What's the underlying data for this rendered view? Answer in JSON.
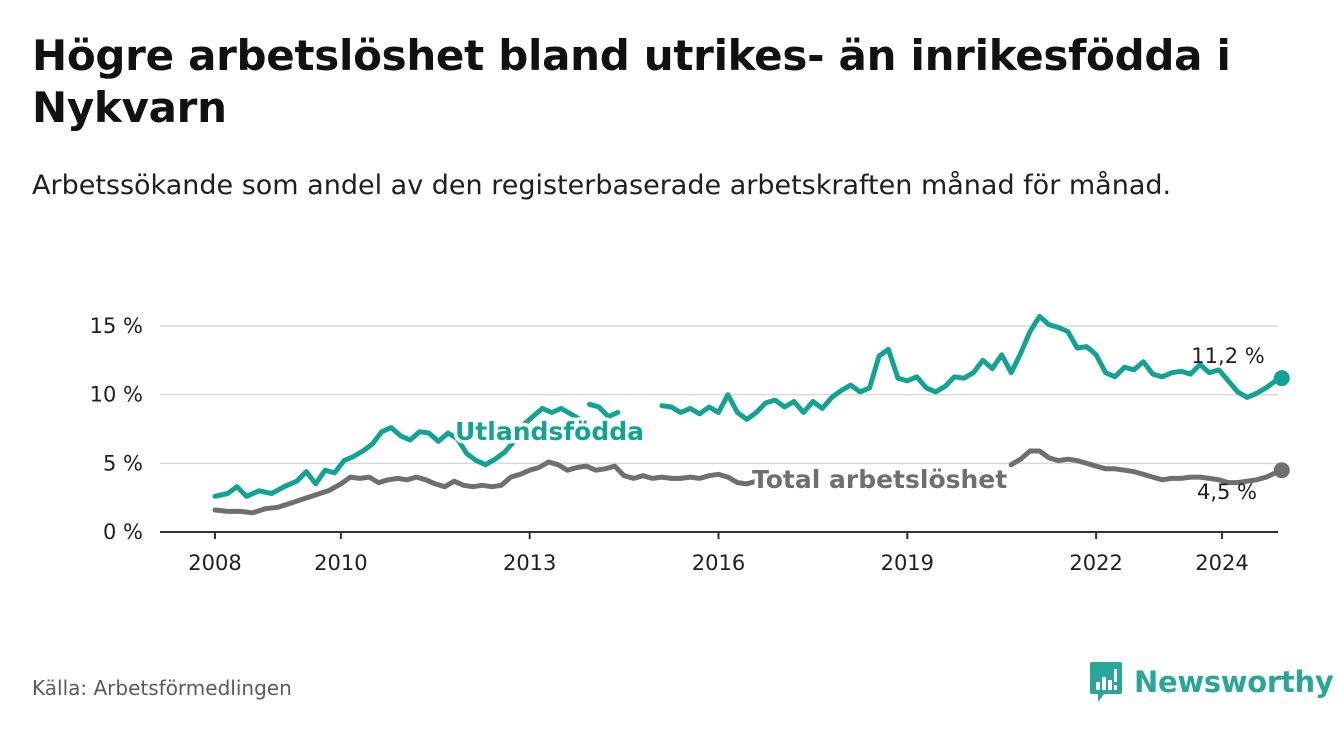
{
  "header": {
    "title": "Högre arbetslöshet bland utrikes- än inrikesfödda i Nykvarn",
    "subtitle": "Arbetssökande som andel av den registerbaserade arbetskraften månad för månad."
  },
  "footer": {
    "source": "Källa: Arbetsförmedlingen",
    "brand": "Newsworthy"
  },
  "colors": {
    "utlandsfodda": "#13a394",
    "total": "#6f6f6f",
    "grid": "#d9d9d9",
    "axis": "#333333",
    "brand": "#2aa59a"
  },
  "chart_data": {
    "type": "line",
    "title": "Högre arbetslöshet bland utrikes- än inrikesfödda i Nykvarn",
    "xlabel": "",
    "ylabel": "",
    "xlim": [
      2007.7,
      2025.0
    ],
    "ylim": [
      0,
      15
    ],
    "grid": true,
    "x_ticks": [
      2008,
      2010,
      2013,
      2016,
      2019,
      2022,
      2024
    ],
    "x_tick_labels": [
      "2008",
      "2010",
      "2013",
      "2016",
      "2019",
      "2022",
      "2024"
    ],
    "y_ticks": [
      0,
      5,
      10,
      15
    ],
    "y_tick_labels": [
      "0 %",
      "5 %",
      "10 %",
      "15 %"
    ],
    "series": [
      {
        "name": "Utlandsfödda",
        "label": "Utlandsfödda",
        "color": "#13a394",
        "end_label": "11,2 %",
        "end_value": 11.2,
        "segments": [
          [
            [
              2008.0,
              2.6
            ],
            [
              2008.2,
              2.8
            ],
            [
              2008.35,
              3.3
            ],
            [
              2008.5,
              2.6
            ],
            [
              2008.7,
              3.0
            ],
            [
              2008.9,
              2.8
            ],
            [
              2009.1,
              3.3
            ],
            [
              2009.3,
              3.7
            ],
            [
              2009.45,
              4.4
            ],
            [
              2009.6,
              3.5
            ],
            [
              2009.75,
              4.5
            ],
            [
              2009.9,
              4.3
            ],
            [
              2010.05,
              5.2
            ],
            [
              2010.2,
              5.5
            ],
            [
              2010.35,
              5.9
            ],
            [
              2010.5,
              6.4
            ],
            [
              2010.65,
              7.3
            ],
            [
              2010.8,
              7.6
            ],
            [
              2010.95,
              7.0
            ],
            [
              2011.1,
              6.7
            ],
            [
              2011.25,
              7.3
            ],
            [
              2011.4,
              7.2
            ],
            [
              2011.55,
              6.6
            ],
            [
              2011.7,
              7.2
            ],
            [
              2011.85,
              6.8
            ],
            [
              2012.0,
              5.7
            ],
            [
              2012.15,
              5.2
            ],
            [
              2012.3,
              4.9
            ],
            [
              2012.45,
              5.3
            ],
            [
              2012.6,
              5.8
            ],
            [
              2012.75,
              6.6
            ],
            [
              2012.9,
              7.8
            ],
            [
              2013.05,
              8.4
            ],
            [
              2013.2,
              9.0
            ],
            [
              2013.35,
              8.7
            ],
            [
              2013.5,
              9.0
            ],
            [
              2013.65,
              8.6
            ],
            [
              2013.8,
              8.2
            ]
          ],
          [
            [
              2013.95,
              9.3
            ],
            [
              2014.1,
              9.1
            ],
            [
              2014.25,
              8.4
            ],
            [
              2014.4,
              8.7
            ]
          ],
          [
            [
              2015.1,
              9.2
            ],
            [
              2015.25,
              9.1
            ],
            [
              2015.4,
              8.7
            ],
            [
              2015.55,
              9.0
            ],
            [
              2015.7,
              8.6
            ],
            [
              2015.85,
              9.1
            ],
            [
              2016.0,
              8.7
            ],
            [
              2016.15,
              10.0
            ],
            [
              2016.3,
              8.7
            ],
            [
              2016.45,
              8.2
            ],
            [
              2016.6,
              8.7
            ],
            [
              2016.75,
              9.4
            ],
            [
              2016.9,
              9.6
            ],
            [
              2017.05,
              9.1
            ],
            [
              2017.2,
              9.5
            ],
            [
              2017.35,
              8.7
            ],
            [
              2017.5,
              9.5
            ],
            [
              2017.65,
              9.0
            ],
            [
              2017.8,
              9.8
            ],
            [
              2017.95,
              10.3
            ],
            [
              2018.1,
              10.7
            ],
            [
              2018.25,
              10.2
            ],
            [
              2018.4,
              10.5
            ],
            [
              2018.55,
              12.8
            ],
            [
              2018.7,
              13.3
            ],
            [
              2018.85,
              11.2
            ],
            [
              2019.0,
              11.0
            ],
            [
              2019.15,
              11.3
            ],
            [
              2019.3,
              10.5
            ],
            [
              2019.45,
              10.2
            ],
            [
              2019.6,
              10.6
            ],
            [
              2019.75,
              11.3
            ],
            [
              2019.9,
              11.2
            ],
            [
              2020.05,
              11.6
            ],
            [
              2020.2,
              12.5
            ],
            [
              2020.35,
              11.9
            ],
            [
              2020.5,
              12.9
            ],
            [
              2020.65,
              11.6
            ],
            [
              2020.8,
              13.0
            ],
            [
              2020.95,
              14.6
            ],
            [
              2021.1,
              15.7
            ],
            [
              2021.25,
              15.1
            ],
            [
              2021.4,
              14.9
            ],
            [
              2021.55,
              14.6
            ],
            [
              2021.7,
              13.4
            ],
            [
              2021.85,
              13.5
            ],
            [
              2022.0,
              12.9
            ],
            [
              2022.15,
              11.6
            ],
            [
              2022.3,
              11.3
            ],
            [
              2022.45,
              12.0
            ],
            [
              2022.6,
              11.8
            ],
            [
              2022.75,
              12.4
            ],
            [
              2022.9,
              11.5
            ],
            [
              2023.05,
              11.3
            ],
            [
              2023.2,
              11.6
            ],
            [
              2023.35,
              11.7
            ],
            [
              2023.5,
              11.5
            ],
            [
              2023.65,
              12.2
            ],
            [
              2023.8,
              11.6
            ],
            [
              2023.95,
              11.8
            ],
            [
              2024.1,
              11.0
            ],
            [
              2024.25,
              10.2
            ],
            [
              2024.4,
              9.8
            ],
            [
              2024.55,
              10.1
            ],
            [
              2024.7,
              10.5
            ],
            [
              2024.85,
              11.0
            ],
            [
              2024.95,
              11.2
            ]
          ]
        ]
      },
      {
        "name": "Total arbetslöshet",
        "label": "Total arbetslöshet",
        "color": "#6f6f6f",
        "end_label": "4,5 %",
        "end_value": 4.5,
        "segments": [
          [
            [
              2008.0,
              1.6
            ],
            [
              2008.2,
              1.5
            ],
            [
              2008.4,
              1.5
            ],
            [
              2008.6,
              1.4
            ],
            [
              2008.8,
              1.7
            ],
            [
              2009.0,
              1.8
            ],
            [
              2009.2,
              2.1
            ],
            [
              2009.4,
              2.4
            ],
            [
              2009.6,
              2.7
            ],
            [
              2009.8,
              3.0
            ],
            [
              2010.0,
              3.5
            ],
            [
              2010.15,
              4.0
            ],
            [
              2010.3,
              3.9
            ],
            [
              2010.45,
              4.0
            ],
            [
              2010.6,
              3.6
            ],
            [
              2010.75,
              3.8
            ],
            [
              2010.9,
              3.9
            ],
            [
              2011.05,
              3.8
            ],
            [
              2011.2,
              4.0
            ],
            [
              2011.35,
              3.8
            ],
            [
              2011.5,
              3.5
            ],
            [
              2011.65,
              3.3
            ],
            [
              2011.8,
              3.7
            ],
            [
              2011.95,
              3.4
            ],
            [
              2012.1,
              3.3
            ],
            [
              2012.25,
              3.4
            ],
            [
              2012.4,
              3.3
            ],
            [
              2012.55,
              3.4
            ],
            [
              2012.7,
              4.0
            ],
            [
              2012.85,
              4.2
            ],
            [
              2013.0,
              4.5
            ],
            [
              2013.15,
              4.7
            ],
            [
              2013.3,
              5.1
            ],
            [
              2013.45,
              4.9
            ],
            [
              2013.6,
              4.5
            ],
            [
              2013.75,
              4.7
            ],
            [
              2013.9,
              4.8
            ],
            [
              2014.05,
              4.5
            ],
            [
              2014.2,
              4.6
            ],
            [
              2014.35,
              4.8
            ],
            [
              2014.5,
              4.1
            ],
            [
              2014.65,
              3.9
            ],
            [
              2014.8,
              4.1
            ],
            [
              2014.95,
              3.9
            ],
            [
              2015.1,
              4.0
            ],
            [
              2015.25,
              3.9
            ],
            [
              2015.4,
              3.9
            ],
            [
              2015.55,
              4.0
            ],
            [
              2015.7,
              3.9
            ],
            [
              2015.85,
              4.1
            ],
            [
              2016.0,
              4.2
            ],
            [
              2016.15,
              4.0
            ],
            [
              2016.3,
              3.6
            ],
            [
              2016.45,
              3.5
            ],
            [
              2016.6,
              3.7
            ],
            [
              2016.75,
              3.8
            ]
          ],
          [
            [
              2020.65,
              4.9
            ],
            [
              2020.8,
              5.3
            ],
            [
              2020.95,
              5.9
            ],
            [
              2021.1,
              5.9
            ],
            [
              2021.25,
              5.4
            ],
            [
              2021.4,
              5.2
            ],
            [
              2021.55,
              5.3
            ],
            [
              2021.7,
              5.2
            ],
            [
              2021.85,
              5.0
            ],
            [
              2022.0,
              4.8
            ],
            [
              2022.15,
              4.6
            ],
            [
              2022.3,
              4.6
            ],
            [
              2022.45,
              4.5
            ],
            [
              2022.6,
              4.4
            ],
            [
              2022.75,
              4.2
            ],
            [
              2022.9,
              4.0
            ],
            [
              2023.05,
              3.8
            ],
            [
              2023.2,
              3.9
            ],
            [
              2023.35,
              3.9
            ],
            [
              2023.5,
              4.0
            ],
            [
              2023.65,
              4.0
            ],
            [
              2023.8,
              3.9
            ],
            [
              2023.95,
              3.8
            ],
            [
              2024.1,
              3.6
            ],
            [
              2024.25,
              3.6
            ],
            [
              2024.4,
              3.7
            ],
            [
              2024.55,
              3.8
            ],
            [
              2024.7,
              4.0
            ],
            [
              2024.85,
              4.3
            ],
            [
              2024.95,
              4.5
            ]
          ]
        ]
      }
    ]
  }
}
